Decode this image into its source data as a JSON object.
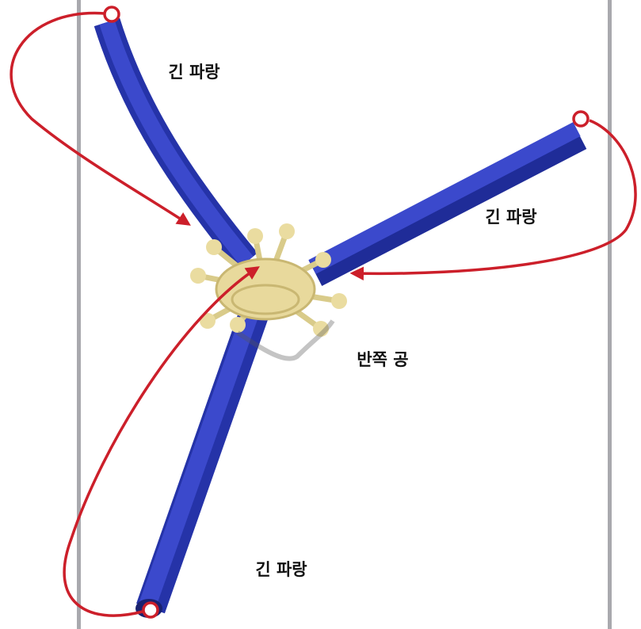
{
  "labels": [
    "긴 파랑",
    "긴 파랑",
    "긴 파랑",
    "반쪽 공"
  ]
}
